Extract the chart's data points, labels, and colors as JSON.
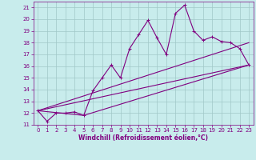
{
  "xlabel": "Windchill (Refroidissement éolien,°C)",
  "bg_color": "#c8ecec",
  "grid_color": "#a0c8c8",
  "line_color": "#800080",
  "xlim": [
    -0.5,
    23.5
  ],
  "ylim": [
    11,
    21.5
  ],
  "xtick_labels": [
    "0",
    "1",
    "2",
    "3",
    "4",
    "5",
    "6",
    "7",
    "8",
    "9",
    "10",
    "11",
    "12",
    "13",
    "14",
    "15",
    "16",
    "17",
    "18",
    "19",
    "20",
    "21",
    "22",
    "23"
  ],
  "xtick_vals": [
    0,
    1,
    2,
    3,
    4,
    5,
    6,
    7,
    8,
    9,
    10,
    11,
    12,
    13,
    14,
    15,
    16,
    17,
    18,
    19,
    20,
    21,
    22,
    23
  ],
  "ytick_vals": [
    11,
    12,
    13,
    14,
    15,
    16,
    17,
    18,
    19,
    20,
    21
  ],
  "ytick_labels": [
    "11",
    "12",
    "13",
    "14",
    "15",
    "16",
    "17",
    "18",
    "19",
    "20",
    "21"
  ],
  "line1_x": [
    0,
    1,
    2,
    3,
    4,
    5,
    6,
    7,
    8,
    9,
    10,
    11,
    12,
    13,
    14,
    15,
    16,
    17,
    18,
    19,
    20,
    21,
    22,
    23
  ],
  "line1_y": [
    12.2,
    11.3,
    12.0,
    12.0,
    12.1,
    11.8,
    13.9,
    15.0,
    16.1,
    15.0,
    17.5,
    18.7,
    19.9,
    18.4,
    17.0,
    20.5,
    21.2,
    19.0,
    18.2,
    18.5,
    18.1,
    18.0,
    17.5,
    16.1
  ],
  "line2_x": [
    0,
    23
  ],
  "line2_y": [
    12.2,
    16.1
  ],
  "line3_x": [
    0,
    5,
    23
  ],
  "line3_y": [
    12.2,
    11.8,
    16.1
  ],
  "line4_x": [
    0,
    23
  ],
  "line4_y": [
    12.2,
    18.0
  ],
  "lw": 0.8,
  "marker_size": 3.0,
  "tick_fontsize": 5.0,
  "xlabel_fontsize": 5.5
}
